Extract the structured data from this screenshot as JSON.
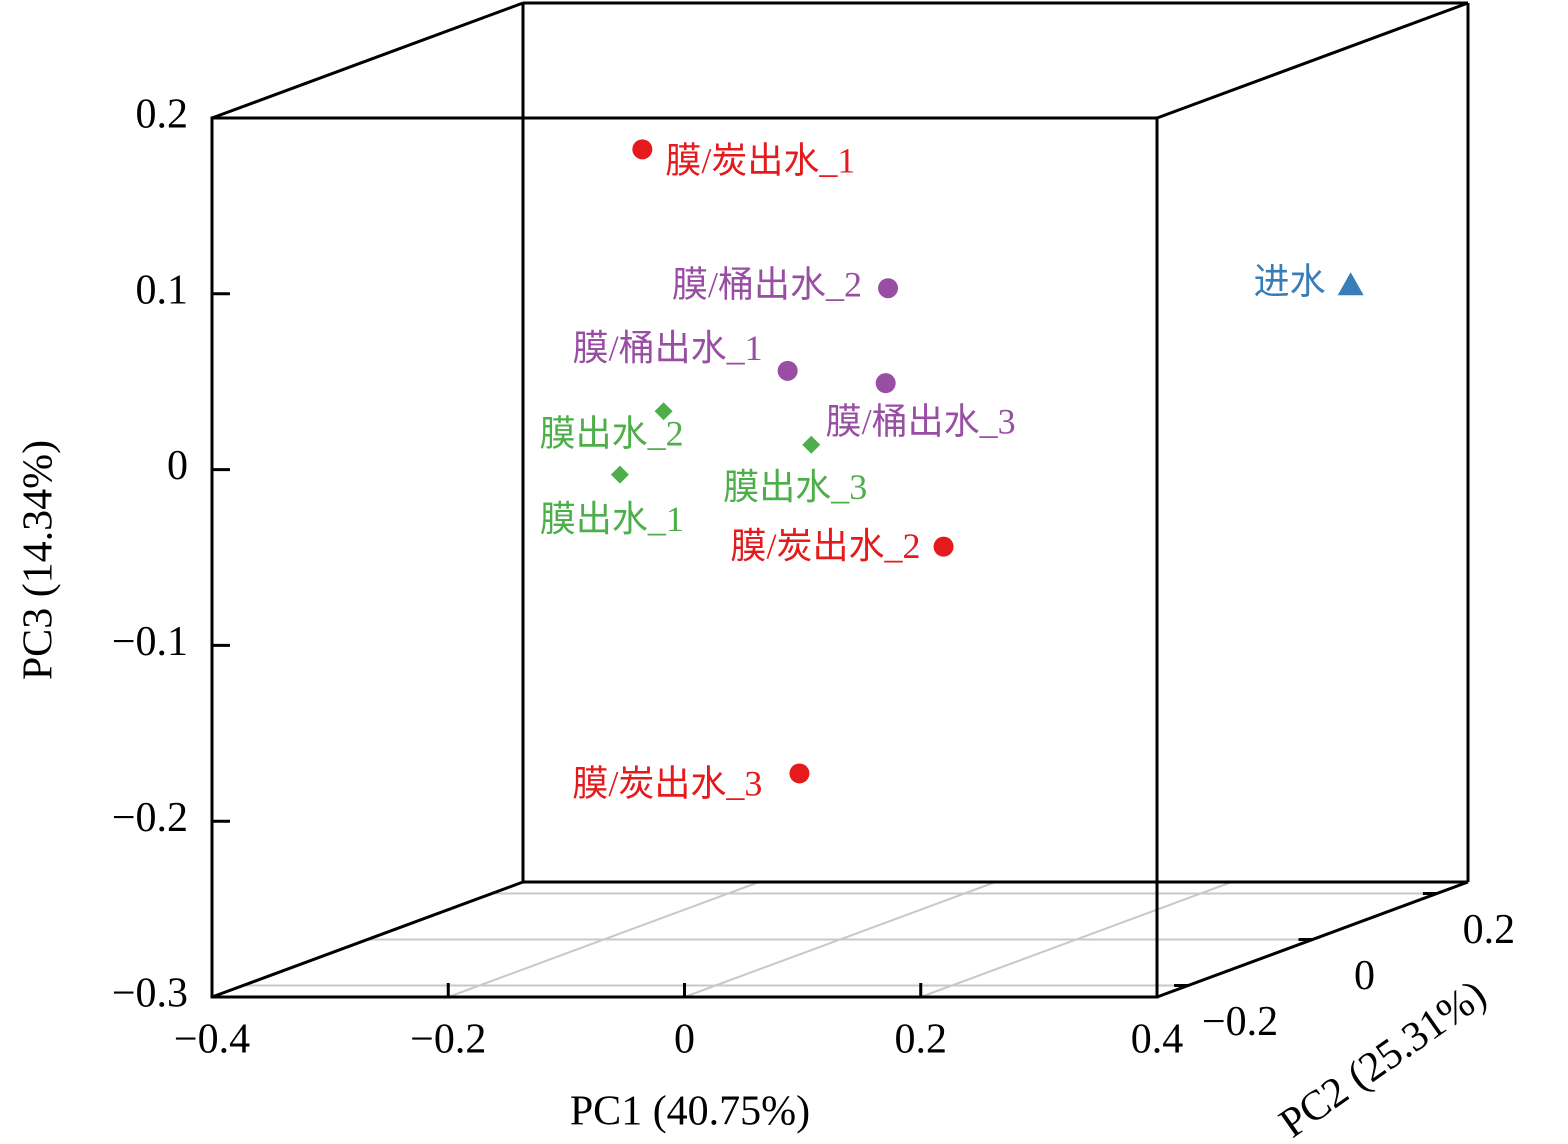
{
  "chart_data": {
    "type": "scatter3d",
    "xlabel": "PC1 (40.75%)",
    "ylabel": "PC3 (14.34%)",
    "zlabel": "PC2 (25.31%)",
    "xlim": [
      -0.4,
      0.4
    ],
    "xticks": [
      {
        "value": -0.4,
        "label": "−0.4"
      },
      {
        "value": -0.2,
        "label": "−0.2"
      },
      0,
      0.2,
      0.4
    ],
    "ylim": [
      -0.3,
      0.2
    ],
    "yticks": [
      {
        "value": -0.3,
        "label": "−0.3"
      },
      {
        "value": -0.2,
        "label": "−0.2"
      },
      {
        "value": -0.1,
        "label": "−0.1"
      },
      0,
      0.1,
      0.2
    ],
    "zlim": [
      -0.25,
      0.25
    ],
    "zticks": [
      {
        "value": -0.2,
        "label": "−0.2"
      },
      0,
      0.2
    ],
    "grid": true,
    "series": [
      {
        "color": "#e41a1c",
        "marker": "circle",
        "labels": [
          "膜/炭出水_1",
          "膜/炭出水_2",
          "膜/炭出水_3"
        ],
        "x": [
          -0.141,
          0.114,
          -0.008
        ],
        "y": [
          0.156,
          -0.07,
          -0.199
        ],
        "z": [
          -0.05,
          -0.05,
          -0.05
        ]
      },
      {
        "color": "#984ea3",
        "marker": "circle",
        "labels": [
          "膜/桶出水_1",
          "膜/桶出水_2",
          "膜/桶出水_3"
        ],
        "x": [
          -0.018,
          0.067,
          0.065
        ],
        "y": [
          0.03,
          0.077,
          0.023
        ],
        "z": [
          -0.05,
          -0.05,
          -0.05
        ]
      },
      {
        "color": "#4daf4a",
        "marker": "diamond",
        "labels": [
          "膜出水_1",
          "膜出水_2",
          "膜出水_3"
        ],
        "x": [
          -0.16,
          -0.123,
          0.002
        ],
        "y": [
          -0.029,
          0.007,
          -0.012
        ],
        "z": [
          -0.05,
          -0.05,
          -0.05
        ]
      },
      {
        "color": "#377eb8",
        "marker": "triangle",
        "labels": [
          "进水"
        ],
        "x": [
          0.327
        ],
        "y": [
          0.046
        ],
        "z": [
          0.2
        ]
      }
    ]
  }
}
